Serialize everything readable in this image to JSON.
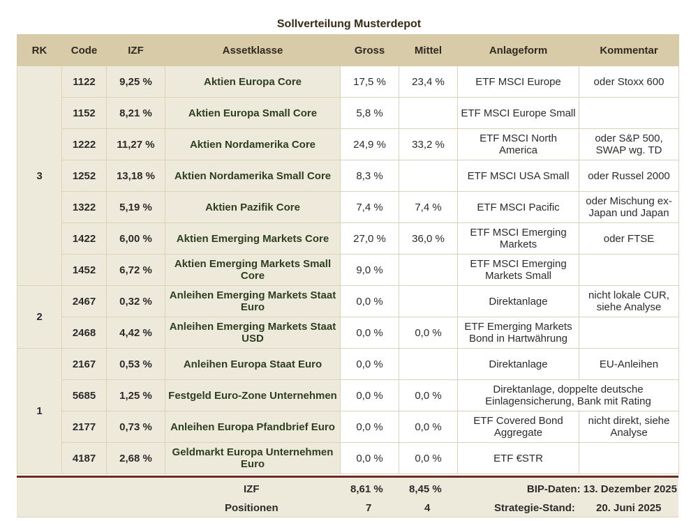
{
  "title": "Sollverteilung Musterdepot",
  "headers": {
    "rk": "RK",
    "code": "Code",
    "izf": "IZF",
    "asset": "Assetklasse",
    "gross": "Gross",
    "mittel": "Mittel",
    "anlageform": "Anlageform",
    "kommentar": "Kommentar"
  },
  "groups": [
    {
      "rk": "3"
    },
    {
      "rk": "2"
    },
    {
      "rk": "1"
    }
  ],
  "rows": [
    {
      "code": "1122",
      "izf": "9,25 %",
      "asset": "Aktien Europa Core",
      "gross": "17,5 %",
      "mittel": "23,4 %",
      "anlage": "ETF MSCI Europe",
      "kommentar": "oder Stoxx 600"
    },
    {
      "code": "1152",
      "izf": "8,21 %",
      "asset": "Aktien Europa Small Core",
      "gross": "5,8 %",
      "mittel": "",
      "anlage": "ETF MSCI Europe Small",
      "kommentar": ""
    },
    {
      "code": "1222",
      "izf": "11,27 %",
      "asset": "Aktien Nordamerika Core",
      "gross": "24,9 %",
      "mittel": "33,2 %",
      "anlage": "ETF MSCI North America",
      "kommentar": "oder S&P 500, SWAP wg. TD"
    },
    {
      "code": "1252",
      "izf": "13,18 %",
      "asset": "Aktien Nordamerika Small Core",
      "gross": "8,3 %",
      "mittel": "",
      "anlage": "ETF MSCI USA Small",
      "kommentar": "oder Russel 2000"
    },
    {
      "code": "1322",
      "izf": "5,19 %",
      "asset": "Aktien Pazifik Core",
      "gross": "7,4 %",
      "mittel": "7,4 %",
      "anlage": "ETF MSCI Pacific",
      "kommentar": "oder Mischung ex-Japan und Japan"
    },
    {
      "code": "1422",
      "izf": "6,00 %",
      "asset": "Aktien Emerging Markets Core",
      "gross": "27,0 %",
      "mittel": "36,0 %",
      "anlage": "ETF MSCI Emerging Markets",
      "kommentar": "oder FTSE"
    },
    {
      "code": "1452",
      "izf": "6,72 %",
      "asset": "Aktien Emerging Markets Small Core",
      "gross": "9,0 %",
      "mittel": "",
      "anlage": "ETF MSCI Emerging Markets Small",
      "kommentar": ""
    },
    {
      "code": "2467",
      "izf": "0,32 %",
      "asset": "Anleihen Emerging Markets Staat Euro",
      "gross": "0,0 %",
      "mittel": "",
      "anlage": "Direktanlage",
      "kommentar": "nicht lokale CUR, siehe Analyse"
    },
    {
      "code": "2468",
      "izf": "4,42 %",
      "asset": "Anleihen Emerging Markets Staat USD",
      "gross": "0,0 %",
      "mittel": "0,0 %",
      "anlage": "ETF Emerging Markets Bond in Hartwährung",
      "kommentar": ""
    },
    {
      "code": "2167",
      "izf": "0,53 %",
      "asset": "Anleihen Europa Staat Euro",
      "gross": "0,0 %",
      "mittel": "",
      "anlage": "Direktanlage",
      "kommentar": "EU-Anleihen"
    },
    {
      "code": "5685",
      "izf": "1,25 %",
      "asset": "Festgeld Euro-Zone Unternehmen",
      "gross": "0,0 %",
      "mittel": "0,0 %",
      "anlage_span": "Direktanlage, doppelte deutsche Einlagensicherung, Bank mit Rating"
    },
    {
      "code": "2177",
      "izf": "0,73 %",
      "asset": "Anleihen Europa Pfandbrief Euro",
      "gross": "0,0 %",
      "mittel": "0,0 %",
      "anlage": "ETF Covered Bond Aggregate",
      "kommentar": "nicht direkt, siehe Analyse"
    },
    {
      "code": "4187",
      "izf": "2,68 %",
      "asset": "Geldmarkt Europa Unternehmen Euro",
      "gross": "0,0 %",
      "mittel": "0,0 %",
      "anlage": "ETF €STR",
      "kommentar": ""
    }
  ],
  "footer": {
    "izf_label": "IZF",
    "izf_gross": "8,61 %",
    "izf_mittel": "8,45 %",
    "bip": "BIP-Daten: 13. Dezember 2025",
    "positionen_label": "Positionen",
    "pos_gross": "7",
    "pos_mittel": "4",
    "strategie_label": "Strategie-Stand:",
    "strategie_date": "20. Juni 2025"
  }
}
